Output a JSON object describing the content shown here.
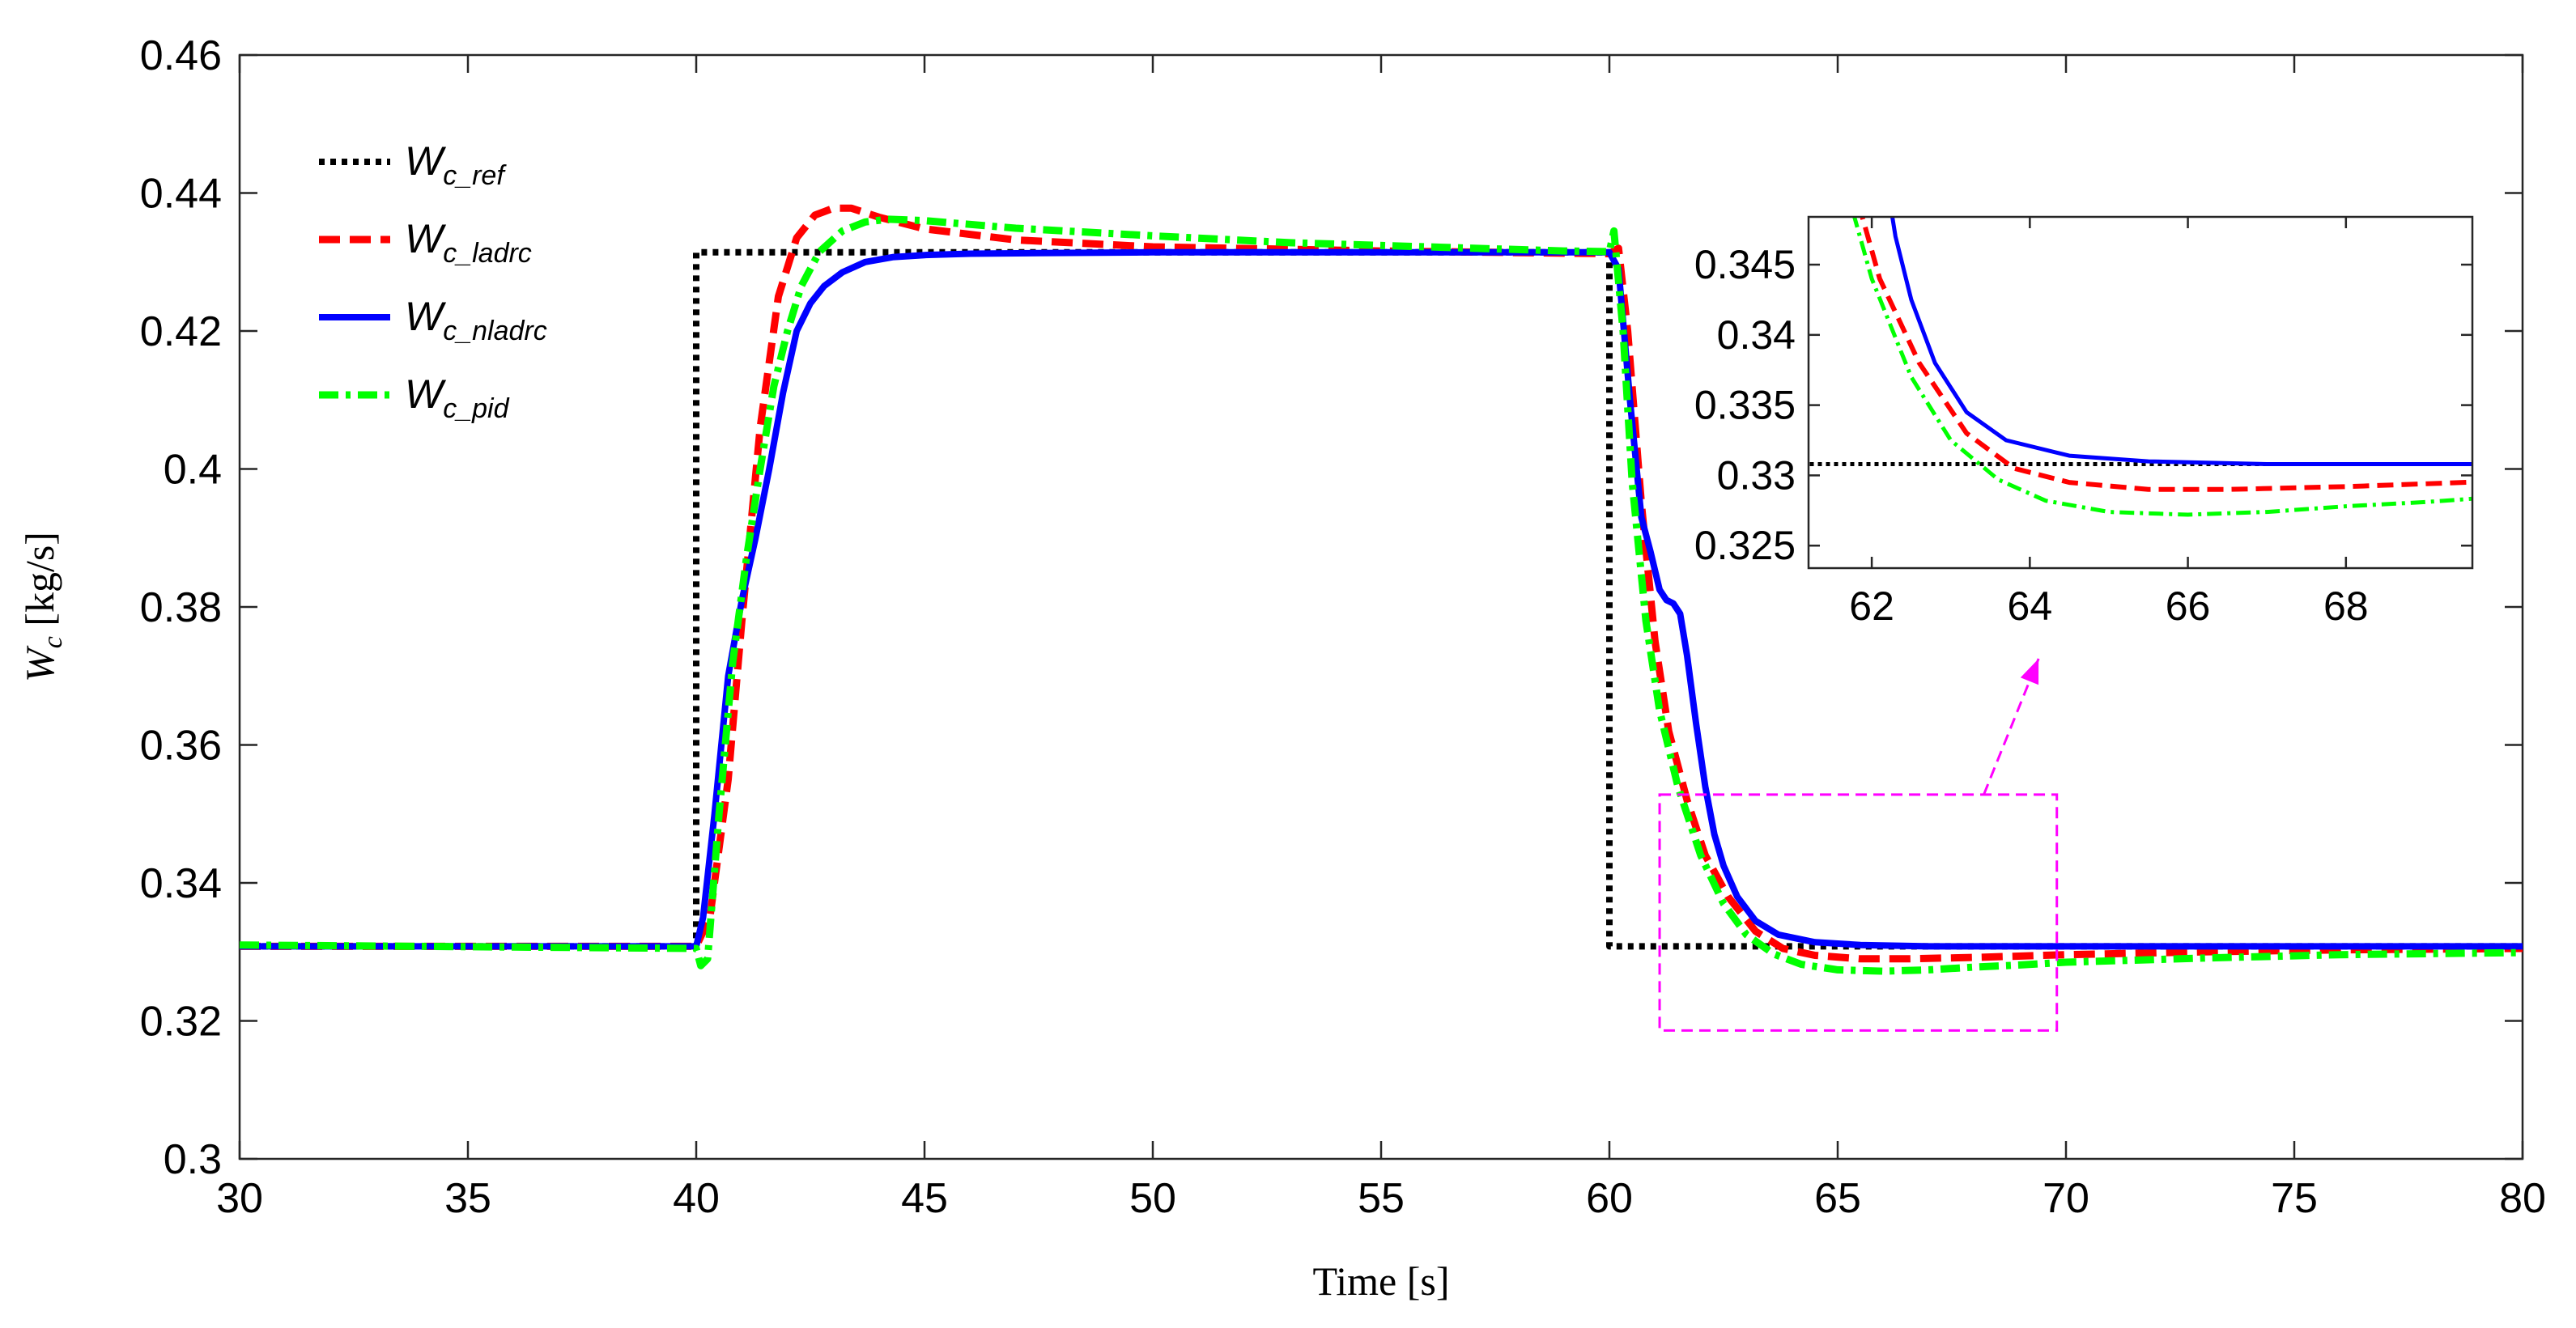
{
  "chart_data": {
    "type": "line",
    "title": "",
    "xlabel": "Time [s]",
    "ylabel": {
      "symbol": "W",
      "subscript": "c",
      "unit": " [kg/s]"
    },
    "xlim": [
      30,
      80
    ],
    "ylim": [
      0.3,
      0.46
    ],
    "xticks": [
      30,
      35,
      40,
      45,
      50,
      55,
      60,
      65,
      70,
      75,
      80
    ],
    "xtick_labels": [
      "30",
      "35",
      "40",
      "45",
      "50",
      "55",
      "60",
      "65",
      "70",
      "75",
      "80"
    ],
    "yticks": [
      0.3,
      0.32,
      0.34,
      0.36,
      0.38,
      0.4,
      0.42,
      0.44,
      0.46
    ],
    "ytick_labels": [
      "0.3",
      "0.32",
      "0.34",
      "0.36",
      "0.38",
      "0.4",
      "0.42",
      "0.44",
      "0.46"
    ],
    "legend_position": "top-left",
    "series": [
      {
        "name": "W_c_ref",
        "legend_main": "W",
        "legend_sub": "c_ref",
        "color": "#000000",
        "style": "dotted",
        "x": [
          30,
          40,
          40,
          60,
          60,
          80
        ],
        "y": [
          0.3308,
          0.3308,
          0.4314,
          0.4314,
          0.3308,
          0.3308
        ]
      },
      {
        "name": "W_c_ladrc",
        "legend_main": "W",
        "legend_sub": "c_ladrc",
        "color": "#ff0000",
        "style": "dashed",
        "x": [
          30,
          40,
          40.3,
          40.7,
          41,
          41.4,
          41.8,
          42.2,
          42.6,
          43,
          43.4,
          44,
          45,
          47,
          50,
          55,
          60,
          60.2,
          60.4,
          60.7,
          61,
          61.3,
          61.7,
          62.1,
          62.6,
          63.2,
          63.8,
          64.5,
          65.5,
          66.5,
          68,
          70,
          73,
          76,
          80
        ],
        "y": [
          0.3308,
          0.3308,
          0.335,
          0.355,
          0.378,
          0.406,
          0.425,
          0.4335,
          0.4368,
          0.4378,
          0.4378,
          0.4365,
          0.4348,
          0.4332,
          0.4322,
          0.4316,
          0.4312,
          0.432,
          0.42,
          0.395,
          0.375,
          0.362,
          0.352,
          0.344,
          0.338,
          0.333,
          0.3305,
          0.3295,
          0.329,
          0.329,
          0.3292,
          0.3296,
          0.33,
          0.3303,
          0.3305
        ]
      },
      {
        "name": "W_c_nladrc",
        "legend_main": "W",
        "legend_sub": "c_nladrc",
        "color": "#0000ff",
        "style": "solid",
        "x": [
          30,
          40,
          40.15,
          40.4,
          40.7,
          41,
          41.3,
          41.6,
          41.9,
          42.2,
          42.5,
          42.8,
          43.2,
          43.7,
          44.3,
          45,
          46,
          47.5,
          50,
          55,
          60,
          60.2,
          60.45,
          60.7,
          60.9,
          61.1,
          61.25,
          61.4,
          61.55,
          61.7,
          61.9,
          62.1,
          62.3,
          62.5,
          62.8,
          63.2,
          63.7,
          64.5,
          65.5,
          67,
          70,
          75,
          80
        ],
        "y": [
          0.3308,
          0.3308,
          0.335,
          0.35,
          0.37,
          0.381,
          0.39,
          0.4,
          0.411,
          0.42,
          0.424,
          0.4265,
          0.4285,
          0.43,
          0.4307,
          0.431,
          0.4312,
          0.4313,
          0.4314,
          0.4314,
          0.4314,
          0.429,
          0.41,
          0.393,
          0.388,
          0.3825,
          0.381,
          0.3805,
          0.379,
          0.373,
          0.363,
          0.354,
          0.347,
          0.3425,
          0.338,
          0.3345,
          0.3325,
          0.3314,
          0.331,
          0.3308,
          0.3308,
          0.3308,
          0.3308
        ]
      },
      {
        "name": "W_c_pid",
        "legend_main": "W",
        "legend_sub": "c_pid",
        "color": "#00ff00",
        "style": "dashdot",
        "x": [
          30,
          40,
          40.1,
          40.25,
          40.5,
          40.8,
          41.1,
          41.4,
          41.7,
          42,
          42.3,
          42.7,
          43.2,
          43.7,
          44.2,
          45,
          47,
          50,
          53,
          56,
          59,
          60,
          60.1,
          60.3,
          60.5,
          60.8,
          61.1,
          61.5,
          62,
          62.5,
          63,
          63.6,
          64.2,
          65,
          66,
          67,
          68,
          69,
          70,
          73,
          76,
          80
        ],
        "y": [
          0.331,
          0.3305,
          0.328,
          0.329,
          0.35,
          0.372,
          0.387,
          0.4,
          0.412,
          0.42,
          0.4265,
          0.4315,
          0.4345,
          0.4358,
          0.4362,
          0.436,
          0.4349,
          0.4338,
          0.4328,
          0.4322,
          0.4316,
          0.4315,
          0.4345,
          0.42,
          0.398,
          0.378,
          0.365,
          0.354,
          0.344,
          0.337,
          0.3325,
          0.3297,
          0.3282,
          0.3274,
          0.3272,
          0.3274,
          0.3278,
          0.3281,
          0.3285,
          0.3291,
          0.3296,
          0.3299
        ]
      }
    ],
    "annotations": [
      {
        "type": "zoom-rectangle",
        "color": "#ff00ff",
        "x_range": [
          61.1,
          69.8
        ],
        "y_range": [
          0.3186,
          0.3528
        ]
      },
      {
        "type": "arrow",
        "color": "#ff00ff",
        "from": [
          68.2,
          0.3528
        ],
        "to": [
          69.4,
          0.3725
        ]
      }
    ],
    "inset": {
      "xlim": [
        61.2,
        69.6
      ],
      "ylim": [
        0.3234,
        0.3484
      ],
      "xticks": [
        62,
        64,
        66,
        68
      ],
      "xtick_labels": [
        "62",
        "64",
        "66",
        "68"
      ],
      "yticks": [
        0.325,
        0.33,
        0.335,
        0.34,
        0.345
      ],
      "ytick_labels": [
        "0.325",
        "0.33",
        "0.335",
        "0.34",
        "0.345"
      ]
    }
  }
}
